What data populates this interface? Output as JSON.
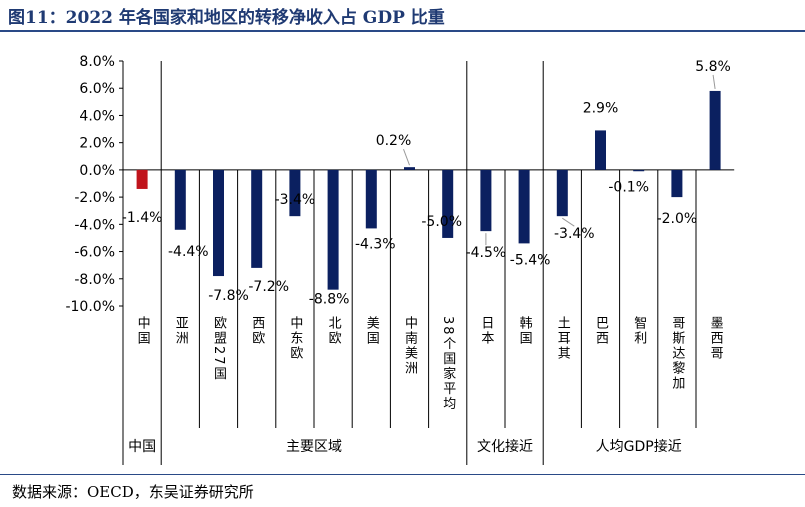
{
  "figure": {
    "title": "图11：2022 年各国家和地区的转移净收入占 GDP 比重",
    "source": "数据来源：OECD，东吴证券研究所"
  },
  "chart_data": {
    "type": "bar",
    "categories": [
      "中国",
      "亚洲",
      "欧盟27国",
      "西欧",
      "中东欧",
      "北欧",
      "美国",
      "中南美洲",
      "38个国家平均",
      "日本",
      "韩国",
      "土耳其",
      "巴西",
      "智利",
      "哥斯达黎加",
      "墨西哥"
    ],
    "values": [
      -1.4,
      -4.4,
      -7.8,
      -7.2,
      -3.4,
      -8.8,
      -4.3,
      0.2,
      -5.0,
      -4.5,
      -5.4,
      -3.4,
      2.9,
      -0.1,
      -2.0,
      5.8
    ],
    "data_labels": [
      "-1.4%",
      "-4.4%",
      "-7.8%",
      "-7.2%",
      "-3.4%",
      "-8.8%",
      "-4.3%",
      "0.2%",
      "-5.0%",
      "-4.5%",
      "-5.4%",
      "-3.4%",
      "2.9%",
      "-0.1%",
      "-2.0%",
      "5.8%"
    ],
    "groups": [
      {
        "label": "中国",
        "start": 0,
        "end": 0
      },
      {
        "label": "主要区域",
        "start": 1,
        "end": 8
      },
      {
        "label": "文化接近",
        "start": 9,
        "end": 10
      },
      {
        "label": "人均GDP接近",
        "start": 11,
        "end": 15
      }
    ],
    "ylim": [
      -10,
      8
    ],
    "yticks": [
      8,
      6,
      4,
      2,
      0,
      -2,
      -4,
      -6,
      -8,
      -10
    ],
    "ytick_labels": [
      "8.0%",
      "6.0%",
      "4.0%",
      "2.0%",
      "0.0%",
      "-2.0%",
      "-4.0%",
      "-6.0%",
      "-8.0%",
      "-10.0%"
    ],
    "colors": {
      "highlight": "#c0141c",
      "default": "#0b2060"
    },
    "highlight_index": 0,
    "grid": false,
    "legend": "none"
  }
}
